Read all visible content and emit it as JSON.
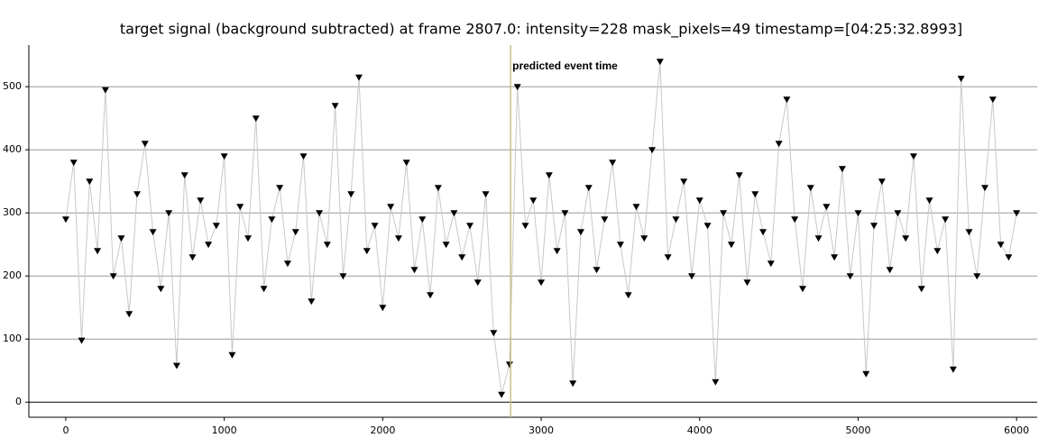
{
  "chart_data": {
    "type": "line",
    "title": "target signal (background subtracted) at frame 2807.0: intensity=228 mask_pixels=49 timestamp=[04:25:32.8993]",
    "x": [
      0,
      50,
      100,
      150,
      200,
      250,
      300,
      350,
      400,
      450,
      500,
      550,
      600,
      650,
      700,
      750,
      800,
      850,
      900,
      950,
      1000,
      1050,
      1100,
      1150,
      1200,
      1250,
      1300,
      1350,
      1400,
      1450,
      1500,
      1550,
      1600,
      1650,
      1700,
      1750,
      1800,
      1850,
      1900,
      1950,
      2000,
      2050,
      2100,
      2150,
      2200,
      2250,
      2300,
      2350,
      2400,
      2450,
      2500,
      2550,
      2600,
      2650,
      2700,
      2750,
      2800,
      2850,
      2900,
      2950,
      3000,
      3050,
      3100,
      3150,
      3200,
      3250,
      3300,
      3350,
      3400,
      3450,
      3500,
      3550,
      3600,
      3650,
      3700,
      3750,
      3800,
      3850,
      3900,
      3950,
      4000,
      4050,
      4100,
      4150,
      4200,
      4250,
      4300,
      4350,
      4400,
      4450,
      4500,
      4550,
      4600,
      4650,
      4700,
      4750,
      4800,
      4850,
      4900,
      4950,
      5000,
      5050,
      5100,
      5150,
      5200,
      5250,
      5300,
      5350,
      5400,
      5450,
      5500,
      5550,
      5600,
      5650,
      5700,
      5750,
      5800,
      5850,
      5900,
      5950,
      6000
    ],
    "series": [
      {
        "name": "target signal",
        "color": "#000000",
        "line_color": "#c8c8c8",
        "values": [
          290,
          380,
          98,
          350,
          240,
          495,
          200,
          260,
          140,
          330,
          410,
          270,
          180,
          300,
          58,
          360,
          230,
          320,
          250,
          280,
          390,
          75,
          310,
          260,
          450,
          180,
          290,
          340,
          220,
          270,
          390,
          160,
          300,
          250,
          470,
          200,
          330,
          515,
          240,
          280,
          150,
          310,
          260,
          380,
          210,
          290,
          170,
          340,
          250,
          300,
          230,
          280,
          190,
          330,
          110,
          12,
          60,
          500,
          280,
          320,
          190,
          360,
          240,
          300,
          30,
          270,
          340,
          210,
          290,
          380,
          250,
          170,
          310,
          260,
          400,
          540,
          230,
          290,
          350,
          200,
          320,
          280,
          32,
          300,
          250,
          360,
          190,
          330,
          270,
          220,
          410,
          480,
          290,
          180,
          340,
          260,
          310,
          230,
          370,
          200,
          300,
          45,
          280,
          350,
          210,
          300,
          260,
          390,
          180,
          320,
          240,
          290,
          52,
          513,
          270,
          200,
          340,
          480,
          250,
          230,
          300
        ]
      }
    ],
    "xlim": [
      -233,
      6130
    ],
    "ylim": [
      -24,
      566
    ],
    "xticks": [
      0,
      1000,
      2000,
      3000,
      4000,
      5000,
      6000
    ],
    "yticks": [
      0,
      100,
      200,
      300,
      400,
      500
    ],
    "grid": true,
    "vline": {
      "x": 2807,
      "label": "predicted event time",
      "color": "#c8c08a"
    }
  }
}
